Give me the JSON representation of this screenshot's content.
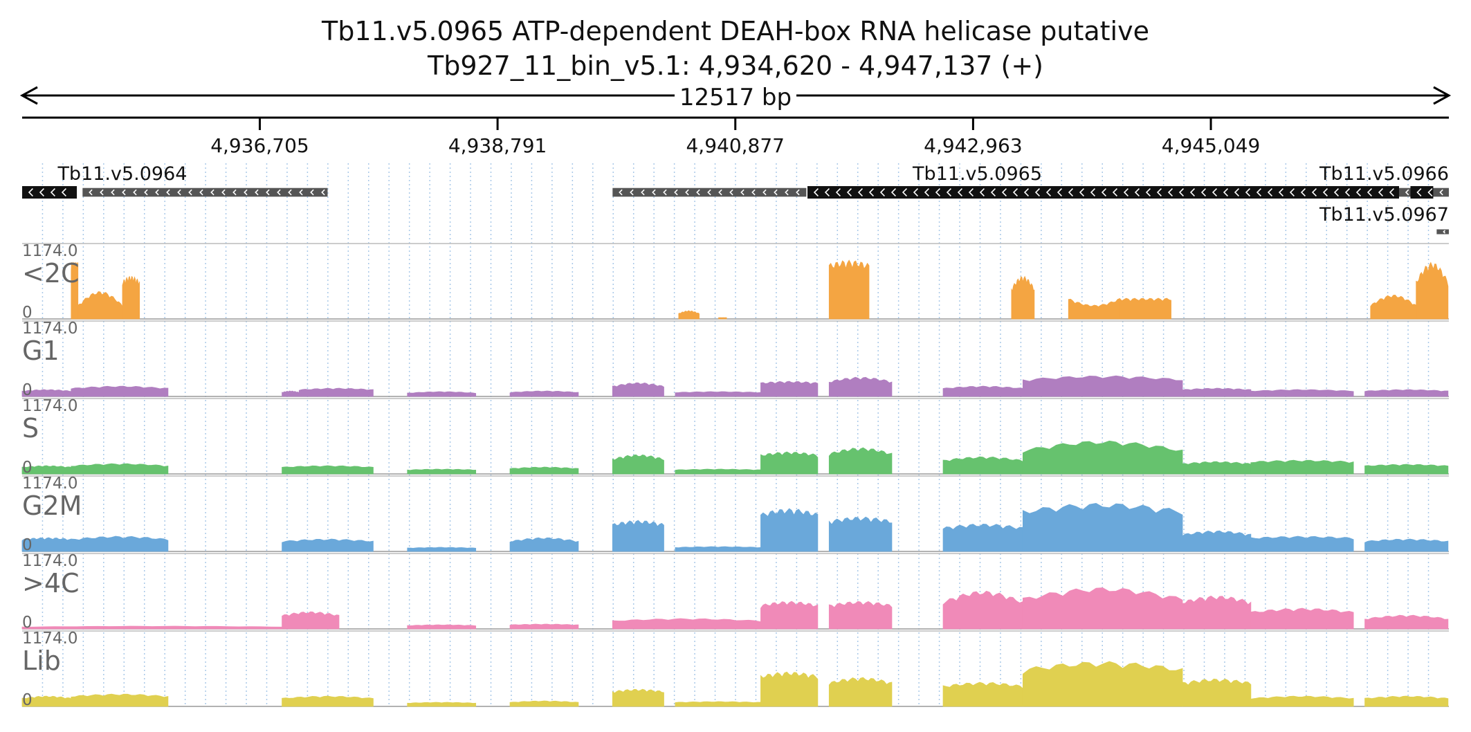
{
  "title": {
    "gene_line": "Tb11.v5.0965  ATP-dependent DEAH-box RNA helicase  putative",
    "locus_line": "Tb927_11_bin_v5.1: 4,934,620 - 4,947,137 (+)",
    "span_label": "12517 bp"
  },
  "colors": {
    "axis": "#000000",
    "grid": "#a8c8e8",
    "track_separator": "#bbbbbb",
    "gene_dark": "#111111",
    "gene_gray": "#555555",
    "track_label": "#666666"
  },
  "chart_data": {
    "type": "area",
    "x_range": [
      4934620,
      4947137
    ],
    "x_ticks": [
      {
        "pos": 4936705,
        "label": "4,936,705"
      },
      {
        "pos": 4938791,
        "label": "4,938,791"
      },
      {
        "pos": 4940877,
        "label": "4,940,877"
      },
      {
        "pos": 4942963,
        "label": "4,942,963"
      },
      {
        "pos": 4945049,
        "label": "4,945,049"
      }
    ],
    "genes": [
      {
        "name": "Tb11.v5.0964",
        "show_label": true,
        "strand": "-",
        "row": 0,
        "utr": [
          [
            4935150,
            4937300
          ]
        ],
        "cds": [
          [
            4934620,
            4935100
          ]
        ]
      },
      {
        "name": "Tb11.v5.0965",
        "show_label": true,
        "strand": "-",
        "row": 0,
        "utr": [
          [
            4939800,
            4941500
          ],
          [
            4946700,
            4947000
          ]
        ],
        "cds": [
          [
            4941510,
            4946700
          ]
        ]
      },
      {
        "name": "Tb11.v5.0966",
        "show_label": true,
        "strand": "-",
        "row": 0,
        "utr": [
          [
            4947000,
            4947137
          ]
        ],
        "cds": [
          [
            4946800,
            4947000
          ]
        ]
      },
      {
        "name": "Tb11.v5.0967",
        "show_label": true,
        "strand": "-",
        "row": 1,
        "utr": [
          [
            4947030,
            4947137
          ]
        ],
        "cds": []
      }
    ],
    "y_max_label": "1174.0",
    "y_min_label": "0",
    "series": [
      {
        "name": "<2C",
        "color": "#f4a542",
        "peak_color": "#d05010",
        "segments": [
          [
            4935050,
            4935110,
            0.82,
            0.82
          ],
          [
            4935110,
            4935500,
            0.2,
            0.4
          ],
          [
            4935500,
            4935650,
            0.55,
            0.62
          ],
          [
            4940380,
            4940560,
            0.08,
            0.12
          ],
          [
            4940730,
            4940800,
            0.02,
            0.02
          ],
          [
            4941700,
            4942050,
            0.8,
            0.85
          ],
          [
            4943300,
            4943500,
            0.45,
            0.62
          ],
          [
            4943800,
            4944250,
            0.3,
            0.2
          ],
          [
            4944250,
            4944700,
            0.3,
            0.3
          ],
          [
            4946450,
            4946850,
            0.2,
            0.35
          ],
          [
            4946850,
            4947130,
            0.55,
            0.82
          ]
        ]
      },
      {
        "name": "G1",
        "color": "#b07ec0",
        "segments": [
          [
            4934620,
            4935050,
            0.08,
            0.1
          ],
          [
            4935050,
            4935900,
            0.12,
            0.15
          ],
          [
            4936900,
            4937050,
            0.06,
            0.08
          ],
          [
            4937050,
            4937700,
            0.1,
            0.12
          ],
          [
            4938000,
            4938600,
            0.05,
            0.07
          ],
          [
            4938900,
            4939500,
            0.06,
            0.08
          ],
          [
            4939800,
            4940250,
            0.15,
            0.2
          ],
          [
            4940350,
            4941100,
            0.06,
            0.07
          ],
          [
            4941100,
            4941600,
            0.2,
            0.22
          ],
          [
            4941700,
            4942250,
            0.22,
            0.28
          ],
          [
            4942700,
            4943400,
            0.12,
            0.15
          ],
          [
            4943400,
            4944800,
            0.25,
            0.3
          ],
          [
            4944800,
            4945400,
            0.1,
            0.12
          ],
          [
            4945400,
            4946300,
            0.08,
            0.1
          ],
          [
            4946400,
            4947130,
            0.08,
            0.1
          ]
        ]
      },
      {
        "name": "S",
        "color": "#66c26e",
        "segments": [
          [
            4934620,
            4935050,
            0.1,
            0.12
          ],
          [
            4935050,
            4935900,
            0.12,
            0.15
          ],
          [
            4936900,
            4937700,
            0.1,
            0.12
          ],
          [
            4938000,
            4938600,
            0.06,
            0.07
          ],
          [
            4938900,
            4939500,
            0.08,
            0.1
          ],
          [
            4939800,
            4940250,
            0.22,
            0.28
          ],
          [
            4940350,
            4941100,
            0.06,
            0.07
          ],
          [
            4941100,
            4941600,
            0.28,
            0.32
          ],
          [
            4941700,
            4942250,
            0.3,
            0.38
          ],
          [
            4942700,
            4943400,
            0.2,
            0.25
          ],
          [
            4943400,
            4944800,
            0.35,
            0.48
          ],
          [
            4944800,
            4945400,
            0.15,
            0.18
          ],
          [
            4945400,
            4946300,
            0.18,
            0.2
          ],
          [
            4946400,
            4947130,
            0.12,
            0.14
          ]
        ]
      },
      {
        "name": "G2M",
        "color": "#6aa8da",
        "segments": [
          [
            4934620,
            4935050,
            0.18,
            0.2
          ],
          [
            4935050,
            4935900,
            0.18,
            0.22
          ],
          [
            4936900,
            4937700,
            0.15,
            0.18
          ],
          [
            4938000,
            4938600,
            0.05,
            0.06
          ],
          [
            4938900,
            4939500,
            0.15,
            0.2
          ],
          [
            4939800,
            4940250,
            0.4,
            0.45
          ],
          [
            4940350,
            4941100,
            0.06,
            0.07
          ],
          [
            4941100,
            4941600,
            0.55,
            0.62
          ],
          [
            4941700,
            4942250,
            0.45,
            0.5
          ],
          [
            4942700,
            4943400,
            0.35,
            0.4
          ],
          [
            4943400,
            4944800,
            0.6,
            0.7
          ],
          [
            4944800,
            4945400,
            0.25,
            0.3
          ],
          [
            4945400,
            4946300,
            0.2,
            0.22
          ],
          [
            4946400,
            4947130,
            0.15,
            0.18
          ]
        ]
      },
      {
        "name": ">4C",
        "color": "#f08ab8",
        "segments": [
          [
            4934620,
            4936900,
            0.03,
            0.04
          ],
          [
            4936900,
            4937400,
            0.2,
            0.25
          ],
          [
            4938000,
            4938600,
            0.05,
            0.06
          ],
          [
            4938900,
            4939500,
            0.06,
            0.07
          ],
          [
            4939800,
            4941100,
            0.12,
            0.15
          ],
          [
            4941100,
            4941600,
            0.35,
            0.4
          ],
          [
            4941700,
            4942250,
            0.35,
            0.4
          ],
          [
            4942700,
            4943400,
            0.4,
            0.55
          ],
          [
            4943400,
            4944800,
            0.45,
            0.6
          ],
          [
            4944800,
            4945400,
            0.4,
            0.48
          ],
          [
            4945400,
            4946300,
            0.25,
            0.3
          ],
          [
            4946400,
            4947130,
            0.15,
            0.2
          ]
        ]
      },
      {
        "name": "Lib",
        "color": "#e0d050",
        "segments": [
          [
            4934620,
            4935050,
            0.12,
            0.15
          ],
          [
            4935050,
            4935900,
            0.15,
            0.18
          ],
          [
            4936900,
            4937700,
            0.12,
            0.15
          ],
          [
            4938000,
            4938600,
            0.05,
            0.06
          ],
          [
            4938900,
            4939500,
            0.06,
            0.08
          ],
          [
            4939800,
            4940250,
            0.22,
            0.25
          ],
          [
            4940350,
            4941100,
            0.06,
            0.07
          ],
          [
            4941100,
            4941600,
            0.45,
            0.5
          ],
          [
            4941700,
            4942250,
            0.35,
            0.42
          ],
          [
            4942700,
            4943400,
            0.3,
            0.35
          ],
          [
            4943400,
            4944800,
            0.55,
            0.65
          ],
          [
            4944800,
            4945400,
            0.35,
            0.4
          ],
          [
            4945400,
            4946300,
            0.12,
            0.15
          ],
          [
            4946400,
            4947130,
            0.12,
            0.15
          ]
        ]
      }
    ]
  }
}
